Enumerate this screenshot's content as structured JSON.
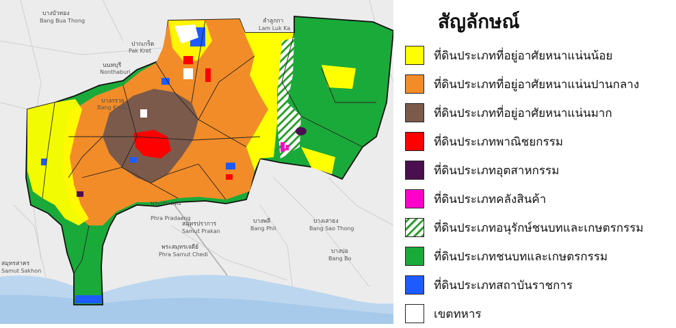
{
  "map": {
    "place_labels": [
      {
        "th": "นนทบุรี",
        "en": "Nonthaburi"
      },
      {
        "th": "บางบัวทอง",
        "en": "Bang Bua Thong"
      },
      {
        "th": "ปากเกร็ด",
        "en": "Pak Kret"
      },
      {
        "th": "บางกรวย",
        "en": "Bang Kruai"
      },
      {
        "th": "ลำลูกกา",
        "en": "Lam Luk Ka"
      },
      {
        "th": "พระประแดง",
        "en": "Phra Pradaeng"
      },
      {
        "th": "สมุทรปราการ",
        "en": "Samut Prakan"
      },
      {
        "th": "พระสมุทรเจดีย์",
        "en": "Phra Samut Chedi"
      },
      {
        "th": "บางพลี",
        "en": "Bang Phli"
      },
      {
        "th": "บางเสาธง",
        "en": "Bang Sao Thong"
      },
      {
        "th": "บางบ่อ",
        "en": "Bang Bo"
      },
      {
        "th": "สมุทรสาคร",
        "en": "Samut Sakhon"
      }
    ]
  },
  "legend": {
    "title": "สัญลักษณ์",
    "items": [
      {
        "label": "ที่ดินประเภทที่อยู่อาศัยหนาแน่นน้อย",
        "color": "#ffff00"
      },
      {
        "label": "ที่ดินประเภทที่อยู่อาศัยหนาแน่นปานกลาง",
        "color": "#f28c28"
      },
      {
        "label": "ที่ดินประเภทที่อยู่อาศัยหนาแน่นมาก",
        "color": "#7b5a4b"
      },
      {
        "label": "ที่ดินประเภทพาณิชยกรรม",
        "color": "#ff0000"
      },
      {
        "label": "ที่ดินประเภทอุตสาหกรรม",
        "color": "#4a0f4f"
      },
      {
        "label": "ที่ดินประเภทคลังสินค้า",
        "color": "#ff00cc"
      },
      {
        "label": "ที่ดินประเภทอนุรักษ์ชนบทและเกษตรกรรม",
        "color": "#2ca02c",
        "pattern": "hatch"
      },
      {
        "label": "ที่ดินประเภทชนบทและเกษตรกรรม",
        "color": "#1aaa3a"
      },
      {
        "label": "ที่ดินประเภทสถาบันราชการ",
        "color": "#1e5bff"
      },
      {
        "label": "เขตทหาร",
        "color": "#ffffff"
      }
    ]
  }
}
